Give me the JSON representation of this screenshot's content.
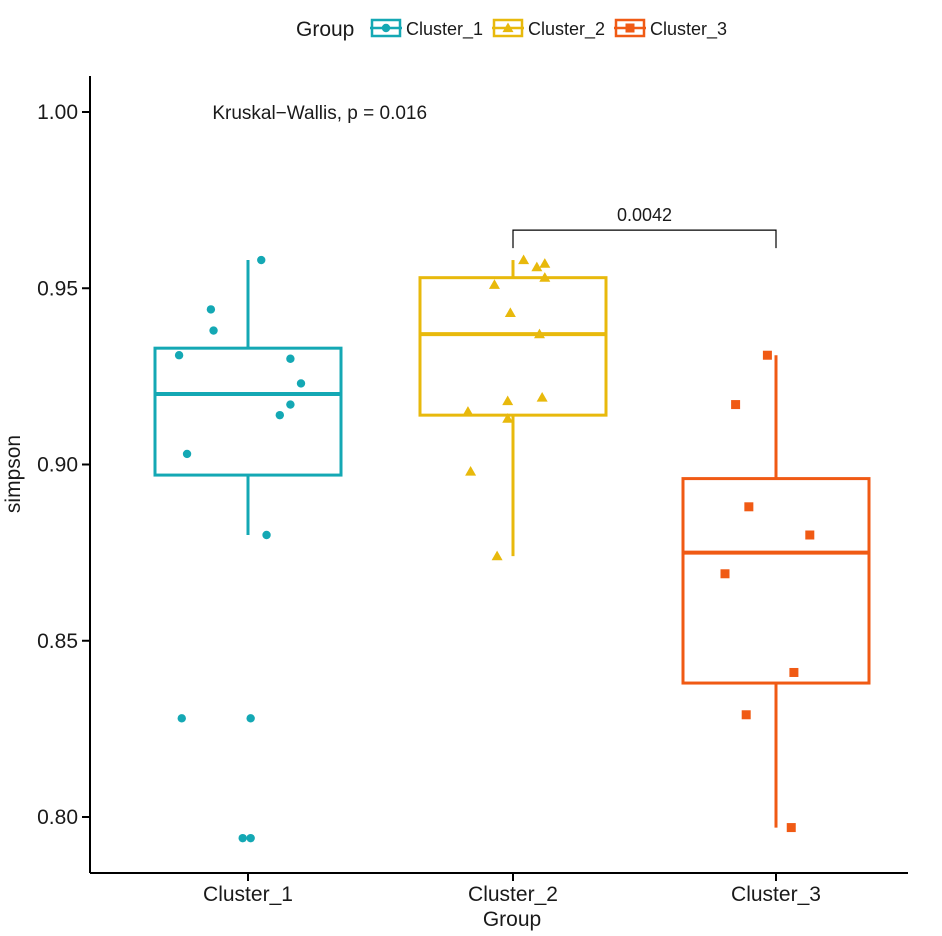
{
  "chart_data": {
    "type": "box",
    "title": "",
    "xlabel": "Group",
    "ylabel": "simpson",
    "ylim": [
      0.783,
      1.01
    ],
    "yticks": [
      0.8,
      0.85,
      0.9,
      0.95,
      1.0
    ],
    "ytick_labels": [
      "0.80",
      "0.85",
      "0.90",
      "0.95",
      "1.00"
    ],
    "grid": false,
    "legend": {
      "title": "Group",
      "position": "top",
      "entries": [
        "Cluster_1",
        "Cluster_2",
        "Cluster_3"
      ]
    },
    "annotation": {
      "text": "Kruskal−Wallis, p = 0.016",
      "x": 0.58,
      "y": 1.0
    },
    "bracket": {
      "from": "Cluster_2",
      "to": "Cluster_3",
      "y": 0.9665,
      "label": "0.0042"
    },
    "categories": [
      "Cluster_1",
      "Cluster_2",
      "Cluster_3"
    ],
    "series": [
      {
        "name": "Cluster_1",
        "color": "#14A8B4",
        "marker": "circle",
        "box": {
          "whisker_low": 0.88,
          "q1": 0.897,
          "median": 0.92,
          "q3": 0.933,
          "whisker_high": 0.958
        },
        "points": [
          {
            "x": 1.05,
            "y": 0.958
          },
          {
            "x": 0.86,
            "y": 0.944
          },
          {
            "x": 0.87,
            "y": 0.938
          },
          {
            "x": 0.74,
            "y": 0.931
          },
          {
            "x": 1.16,
            "y": 0.93
          },
          {
            "x": 1.2,
            "y": 0.923
          },
          {
            "x": 1.16,
            "y": 0.917
          },
          {
            "x": 1.12,
            "y": 0.914
          },
          {
            "x": 0.77,
            "y": 0.903
          },
          {
            "x": 1.07,
            "y": 0.88
          },
          {
            "x": 0.75,
            "y": 0.828
          },
          {
            "x": 1.01,
            "y": 0.828
          },
          {
            "x": 0.98,
            "y": 0.794
          },
          {
            "x": 1.01,
            "y": 0.794
          }
        ]
      },
      {
        "name": "Cluster_2",
        "color": "#E8B90C",
        "marker": "triangle",
        "box": {
          "whisker_low": 0.874,
          "q1": 0.914,
          "median": 0.937,
          "q3": 0.953,
          "whisker_high": 0.958
        },
        "points": [
          {
            "x": 2.04,
            "y": 0.958
          },
          {
            "x": 2.09,
            "y": 0.956
          },
          {
            "x": 2.12,
            "y": 0.957
          },
          {
            "x": 2.12,
            "y": 0.953
          },
          {
            "x": 1.93,
            "y": 0.951
          },
          {
            "x": 1.99,
            "y": 0.943
          },
          {
            "x": 2.1,
            "y": 0.937
          },
          {
            "x": 2.11,
            "y": 0.919
          },
          {
            "x": 1.98,
            "y": 0.918
          },
          {
            "x": 1.83,
            "y": 0.915
          },
          {
            "x": 1.98,
            "y": 0.913
          },
          {
            "x": 1.84,
            "y": 0.898
          },
          {
            "x": 1.94,
            "y": 0.874
          }
        ]
      },
      {
        "name": "Cluster_3",
        "color": "#F05A14",
        "marker": "square",
        "box": {
          "whisker_low": 0.797,
          "q1": 0.838,
          "median": 0.875,
          "q3": 0.896,
          "whisker_high": 0.931
        },
        "points": [
          {
            "x": 2.96,
            "y": 0.931
          },
          {
            "x": 2.84,
            "y": 0.917
          },
          {
            "x": 2.89,
            "y": 0.888
          },
          {
            "x": 3.12,
            "y": 0.88
          },
          {
            "x": 2.8,
            "y": 0.869
          },
          {
            "x": 3.06,
            "y": 0.841
          },
          {
            "x": 2.88,
            "y": 0.829
          },
          {
            "x": 3.05,
            "y": 0.797
          }
        ]
      }
    ]
  }
}
